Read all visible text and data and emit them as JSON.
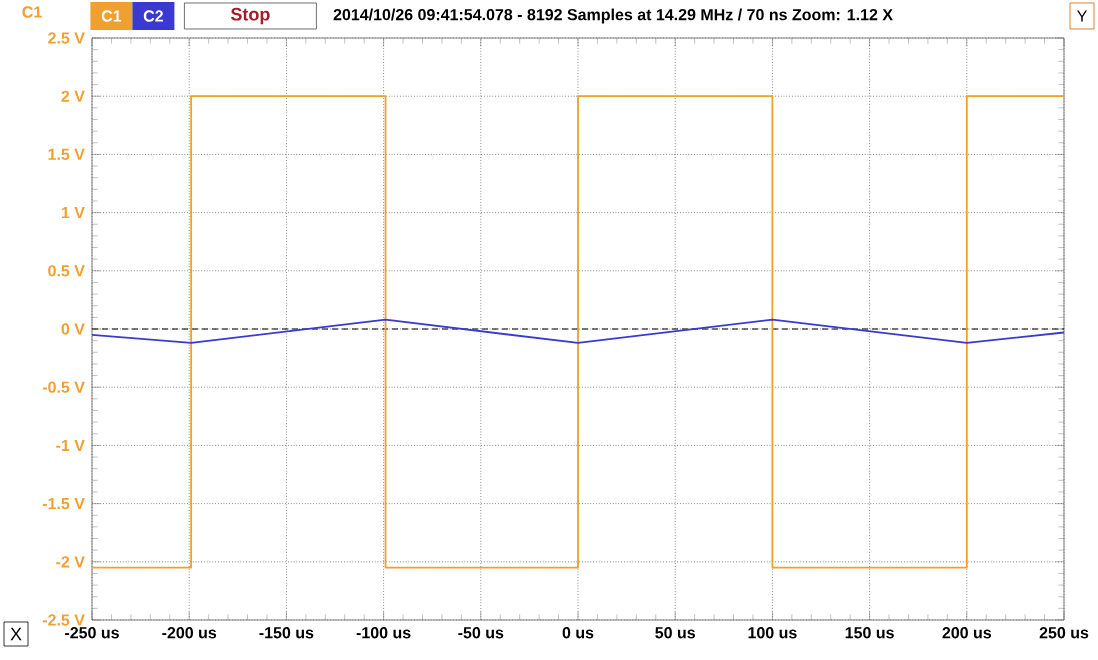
{
  "chart_data": {
    "type": "line",
    "subtitle": "2014/10/26 09:41:54.078 - 8192 Samples at 14.29 MHz / 70 ns Zoom: 1.12 X",
    "ylabel": "C1",
    "annotations": [
      "Stop",
      "X",
      "Y"
    ],
    "x": [
      -250,
      -199,
      -99,
      0,
      100,
      200,
      250
    ],
    "series": [
      {
        "name": "C1",
        "type": "step",
        "color": "#f0a030",
        "values": [
          -2.05,
          2,
          -2.05,
          2,
          -2.05,
          2,
          2
        ]
      },
      {
        "name": "C2",
        "color": "#3a3ad0",
        "values": [
          -0.05,
          -0.12,
          0.08,
          -0.12,
          0.08,
          -0.12,
          -0.03
        ]
      }
    ],
    "xlim": [
      -250,
      250
    ],
    "ylim": [
      -2.5,
      2.5
    ],
    "xticks": [
      {
        "value": -250,
        "label": "-250 us"
      },
      {
        "value": -200,
        "label": "-200 us"
      },
      {
        "value": -150,
        "label": "-150 us"
      },
      {
        "value": -100,
        "label": "-100 us"
      },
      {
        "value": -50,
        "label": "-50 us"
      },
      {
        "value": 0,
        "label": "0 us"
      },
      {
        "value": 50,
        "label": "50 us"
      },
      {
        "value": 100,
        "label": "100 us"
      },
      {
        "value": 150,
        "label": "150 us"
      },
      {
        "value": 200,
        "label": "200 us"
      },
      {
        "value": 250,
        "label": "250 us"
      }
    ],
    "yticks": [
      {
        "value": 2.5,
        "label": "2.5 V"
      },
      {
        "value": 2,
        "label": "2 V"
      },
      {
        "value": 1.5,
        "label": "1.5 V"
      },
      {
        "value": 1,
        "label": "1 V"
      },
      {
        "value": 0.5,
        "label": "0.5 V"
      },
      {
        "value": 0,
        "label": "0 V"
      },
      {
        "value": -0.5,
        "label": "-0.5 V"
      },
      {
        "value": -1,
        "label": "-1 V"
      },
      {
        "value": -1.5,
        "label": "-1.5 V"
      },
      {
        "value": -2,
        "label": "-2 V"
      },
      {
        "value": -2.5,
        "label": "-2.5 V"
      }
    ],
    "ref_lines": [
      {
        "axis": "y",
        "value": 0,
        "color": "#000000",
        "line_style": "dashed"
      }
    ],
    "grid": true,
    "legend": "top left",
    "marker": "none",
    "line_style": "solid"
  }
}
